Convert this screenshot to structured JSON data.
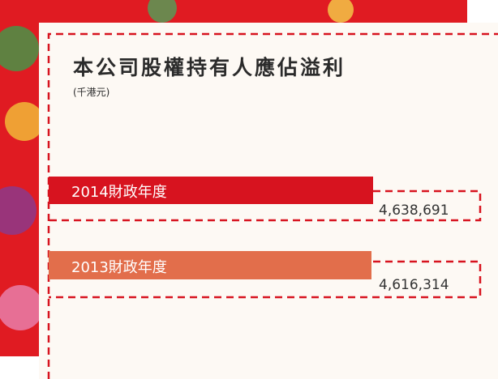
{
  "title": "本公司股權持有人應佔溢利",
  "unit": "(千港元)",
  "rows": [
    {
      "label": "2014財政年度",
      "value": "4,638,691"
    },
    {
      "label": "2013財政年度",
      "value": "4,616,314"
    }
  ]
}
